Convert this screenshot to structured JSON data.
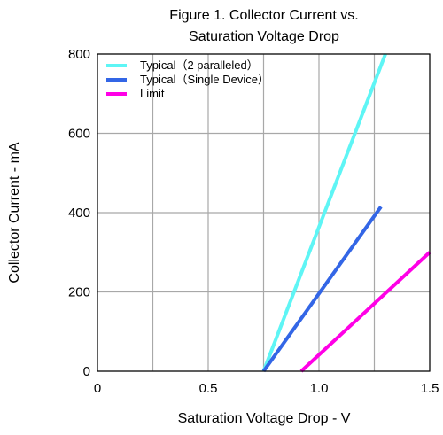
{
  "chart_data": {
    "type": "line",
    "title_line1": "Figure 1. Collector Current vs.",
    "title_line2": "Saturation Voltage Drop",
    "xlabel": "Saturation Voltage Drop - V",
    "ylabel": "Collector Current - mA",
    "xlim": [
      0,
      1.5
    ],
    "ylim": [
      0,
      800
    ],
    "x_ticks": [
      0,
      0.5,
      1.0,
      1.5
    ],
    "x_tick_labels": [
      "0",
      "0.5",
      "1.0",
      "1.5"
    ],
    "y_ticks": [
      0,
      200,
      400,
      600,
      800
    ],
    "y_tick_labels": [
      "0",
      "200",
      "400",
      "600",
      "800"
    ],
    "x_grid_lines": [
      0,
      0.25,
      0.5,
      0.75,
      1.0,
      1.25,
      1.5
    ],
    "y_grid_lines": [
      0,
      200,
      400,
      600,
      800
    ],
    "grid": true,
    "legend_position": "top-left",
    "series": [
      {
        "name": "Typical（2 paralleled）",
        "color": "#5ef5f5",
        "x": [
          0.75,
          1.3
        ],
        "y": [
          0,
          800
        ]
      },
      {
        "name": "Typical（Single Device）",
        "color": "#3366e6",
        "x": [
          0.75,
          1.28
        ],
        "y": [
          0,
          415
        ]
      },
      {
        "name": "Limit",
        "color": "#ff00e6",
        "x": [
          0.92,
          1.5
        ],
        "y": [
          0,
          300
        ]
      }
    ]
  }
}
